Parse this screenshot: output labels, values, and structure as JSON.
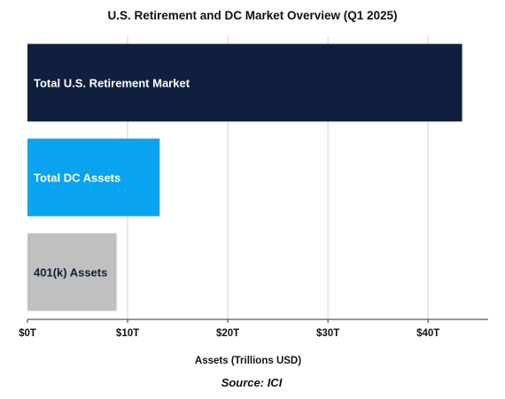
{
  "chart_data": {
    "type": "bar",
    "orientation": "horizontal",
    "title": "U.S. Retirement and DC Market Overview (Q1 2025)",
    "xlabel": "Assets (Trillions USD)",
    "ylabel": "",
    "categories": [
      "Total U.S. Retirement Market",
      "Total DC Assets",
      "401(k) Assets"
    ],
    "values": [
      43.4,
      13.2,
      8.9
    ],
    "colors": [
      "#0f1f3d",
      "#0aa3f0",
      "#c0c0c0"
    ],
    "label_colors": [
      "#ffffff",
      "#ffffff",
      "#0f1f3d"
    ],
    "xlim": [
      0,
      46
    ],
    "xticks": [
      0,
      10,
      20,
      30,
      40
    ],
    "xtick_labels": [
      "$0T",
      "$10T",
      "$20T",
      "$30T",
      "$40T"
    ],
    "grid": "vertical",
    "legend": "none"
  },
  "source": "Source: ICI"
}
